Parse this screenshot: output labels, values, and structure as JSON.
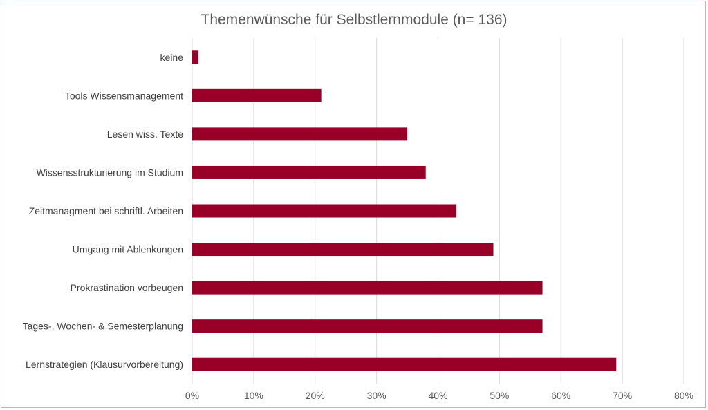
{
  "chart_data": {
    "type": "bar",
    "orientation": "horizontal",
    "title": "Themenwünsche für Selbstlernmodule (n= 136)",
    "categories": [
      "keine",
      "Tools Wissensmanagement",
      "Lesen wiss. Texte",
      "Wissensstrukturierung im Studium",
      "Zeitmanagment bei schriftl. Arbeiten",
      "Umgang mit Ablenkungen",
      "Prokrastination vorbeugen",
      "Tages-, Wochen- & Semesterplanung",
      "Lernstrategien (Klausurvorbereitung)"
    ],
    "values": [
      1,
      21,
      35,
      38,
      43,
      49,
      57,
      57,
      69
    ],
    "value_unit": "%",
    "xlim": [
      0,
      80
    ],
    "xticks": [
      "0%",
      "10%",
      "20%",
      "30%",
      "40%",
      "50%",
      "60%",
      "70%",
      "80%"
    ],
    "xlabel": "",
    "ylabel": "",
    "grid": "vertical",
    "legend": "none",
    "bar_color": "#990028"
  }
}
